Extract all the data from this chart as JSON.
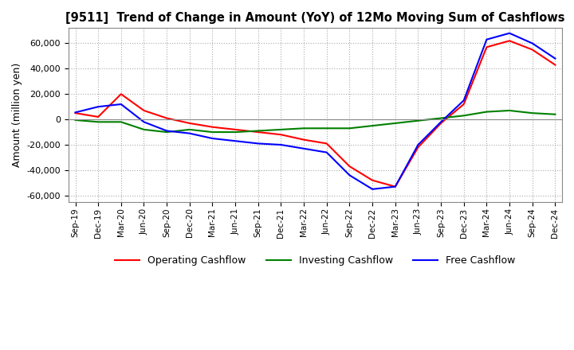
{
  "title": "[9511]  Trend of Change in Amount (YoY) of 12Mo Moving Sum of Cashflows",
  "ylabel": "Amount (million yen)",
  "x_labels": [
    "Sep-19",
    "Dec-19",
    "Mar-20",
    "Jun-20",
    "Sep-20",
    "Dec-20",
    "Mar-21",
    "Jun-21",
    "Sep-21",
    "Dec-21",
    "Mar-22",
    "Jun-22",
    "Sep-22",
    "Dec-22",
    "Mar-23",
    "Jun-23",
    "Sep-23",
    "Dec-23",
    "Mar-24",
    "Jun-24",
    "Sep-24",
    "Dec-24"
  ],
  "operating": [
    5000,
    2000,
    20000,
    7000,
    1000,
    -3000,
    -6000,
    -8000,
    -10000,
    -12000,
    -16000,
    -19000,
    -37000,
    -48000,
    -53000,
    -22000,
    -3000,
    12000,
    57000,
    62000,
    55000,
    43000
  ],
  "investing": [
    -500,
    -2000,
    -2000,
    -8000,
    -10000,
    -8000,
    -10000,
    -10000,
    -9000,
    -8000,
    -7000,
    -7000,
    -7000,
    -5000,
    -3000,
    -1000,
    1000,
    3000,
    6000,
    7000,
    5000,
    4000
  ],
  "free": [
    5500,
    10000,
    12000,
    -2000,
    -9000,
    -11000,
    -15000,
    -17000,
    -19000,
    -20000,
    -23000,
    -26000,
    -44000,
    -55000,
    -53000,
    -20000,
    -2000,
    15000,
    63000,
    68000,
    60000,
    48000
  ],
  "operating_color": "#ff0000",
  "investing_color": "#008000",
  "free_color": "#0000ff",
  "ylim": [
    -65000,
    72000
  ],
  "yticks": [
    -60000,
    -40000,
    -20000,
    0,
    20000,
    40000,
    60000
  ],
  "background_color": "#ffffff",
  "grid_color": "#aaaaaa"
}
